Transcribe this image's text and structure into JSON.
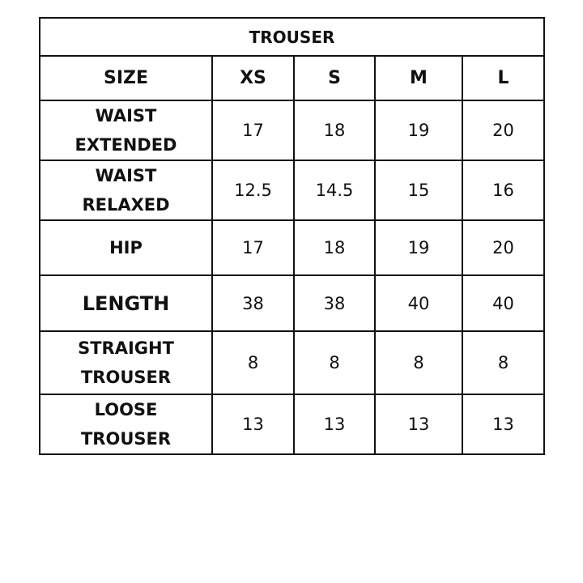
{
  "title": "TROUSER",
  "headers": [
    "SIZE",
    "XS",
    "S",
    "M",
    "L"
  ],
  "rows": [
    {
      "label": [
        "WAIST",
        "EXTENDED"
      ],
      "values": [
        "17",
        "18",
        "19",
        "20"
      ]
    },
    {
      "label": [
        "WAIST",
        "RELAXED"
      ],
      "values": [
        "12.5",
        "14.5",
        "15",
        "16"
      ]
    },
    {
      "label": [
        "HIP"
      ],
      "values": [
        "17",
        "18",
        "19",
        "20"
      ]
    },
    {
      "label": [
        "LENGTH"
      ],
      "values": [
        "38",
        "38",
        "40",
        "40"
      ]
    },
    {
      "label": [
        "STRAIGHT",
        "TROUSER"
      ],
      "values": [
        "8",
        "8",
        "8",
        "8"
      ]
    },
    {
      "label": [
        "LOOSE",
        "TROUSER"
      ],
      "values": [
        "13",
        "13",
        "13",
        "13"
      ]
    }
  ]
}
